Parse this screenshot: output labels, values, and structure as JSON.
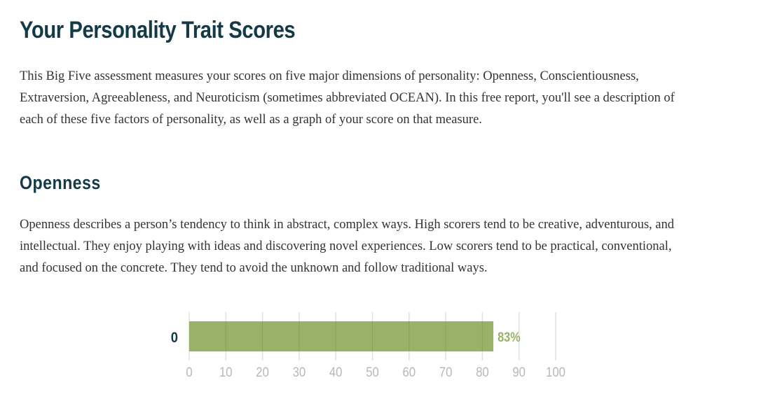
{
  "page_title": "Your Personality Trait Scores",
  "intro": "This Big Five assessment measures your scores on five major dimensions of personality: Openness, Conscientiousness, Extraversion, Agreeableness, and Neuroticism (sometimes abbreviated OCEAN). In this free report, you'll see a description of each of these five factors of personality, as well as a graph of your score on that measure.",
  "section": {
    "heading": "Openness",
    "description": "Openness describes a person’s tendency to think in abstract, complex ways. High scorers tend to be creative, adventurous, and intellectual. They enjoy playing with ideas and discovering novel experiences. Low scorers tend to be practical, conventional, and focused on the concrete. They tend to avoid the unknown and follow traditional ways."
  },
  "colors": {
    "heading": "#153a47",
    "bar": "#98b267",
    "value_label": "#98b267",
    "grid": "#e0e0e0",
    "tick_label": "#b8b8b8"
  },
  "chart_data": {
    "type": "bar",
    "orientation": "horizontal",
    "categories": [
      "0"
    ],
    "values": [
      83
    ],
    "value_labels": [
      "83%"
    ],
    "xlim": [
      0,
      100
    ],
    "xticks": [
      0,
      10,
      20,
      30,
      40,
      50,
      60,
      70,
      80,
      90,
      100
    ],
    "xtick_labels": [
      "0",
      "10",
      "20",
      "30",
      "40",
      "50",
      "60",
      "70",
      "80",
      "90",
      "100"
    ],
    "grid": true,
    "legend": "none"
  }
}
